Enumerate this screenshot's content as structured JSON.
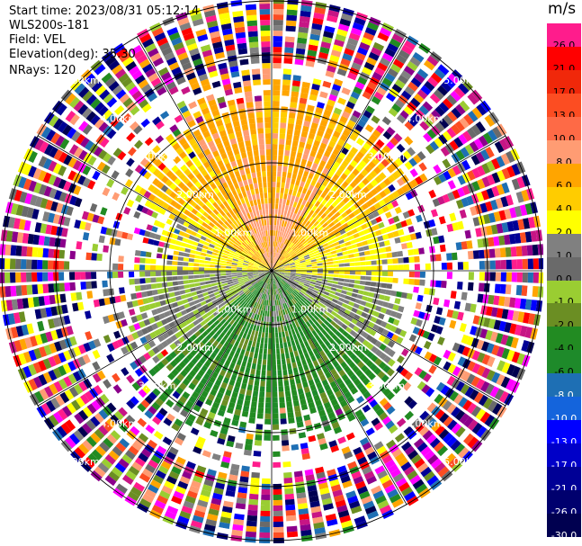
{
  "header": {
    "start_time": "Start time: 2023/08/31 05:12:14",
    "site": "WLS200s-181",
    "field": "Field: VEL",
    "elevation": "Elevation(deg): 35.30",
    "nrays": "NRays: 120"
  },
  "colorbar": {
    "unit": "m/s",
    "levels": [
      {
        "label": "26.0",
        "color": "#ff1c8c"
      },
      {
        "label": "21.0",
        "color": "#ff0000"
      },
      {
        "label": "17.0",
        "color": "#f0280a"
      },
      {
        "label": "13.0",
        "color": "#fc4d22"
      },
      {
        "label": "10.0",
        "color": "#fe6a46"
      },
      {
        "label": "8.0",
        "color": "#ff9c73"
      },
      {
        "label": "6.0",
        "color": "#ffa500"
      },
      {
        "label": "4.0",
        "color": "#ffcc00"
      },
      {
        "label": "2.0",
        "color": "#ffff00"
      },
      {
        "label": "1.0",
        "color": "#808080"
      },
      {
        "label": "0.0",
        "color": "#6a6a6a"
      },
      {
        "label": "-1.0",
        "color": "#9acd32"
      },
      {
        "label": "-2.0",
        "color": "#6b8e23"
      },
      {
        "label": "-4.0",
        "color": "#228b22"
      },
      {
        "label": "-6.0",
        "color": "#1e8a2a"
      },
      {
        "label": "-8.0",
        "color": "#1e6fb4"
      },
      {
        "label": "-10.0",
        "color": "#1464dc"
      },
      {
        "label": "-13.0",
        "color": "#0000ff"
      },
      {
        "label": "-17.0",
        "color": "#0000c8"
      },
      {
        "label": "-21.0",
        "color": "#000096"
      },
      {
        "label": "-26.0",
        "color": "#00006e"
      },
      {
        "label": "-30.0",
        "color": "#000050"
      }
    ]
  },
  "chart_data": {
    "type": "heatmap",
    "projection": "polar",
    "field": "VEL",
    "nrays": 120,
    "range_rings_km": [
      1.0,
      2.0,
      3.0,
      4.0,
      5.0
    ],
    "range_labels": [
      "1.00km",
      "2.00km",
      "3.00km",
      "4.00km",
      "5.00km"
    ],
    "spokes_deg": [
      0,
      30,
      60,
      90,
      120,
      150,
      180,
      210,
      240,
      270,
      300,
      330
    ],
    "max_range_km": 5.0,
    "noise_start_km": 3.8,
    "velocity_sectors": [
      {
        "from_deg": 270,
        "to_deg": 300,
        "min_km": 0.0,
        "max_km": 1.9,
        "class": "yellow_gray"
      },
      {
        "from_deg": 300,
        "to_deg": 330,
        "min_km": 0.0,
        "max_km": 2.6,
        "class": "yellow_orange"
      },
      {
        "from_deg": 330,
        "to_deg": 390,
        "min_km": 0.0,
        "max_km": 3.1,
        "class": "orange"
      },
      {
        "from_deg": 30,
        "to_deg": 60,
        "min_km": 0.0,
        "max_km": 2.7,
        "class": "yellow_orange"
      },
      {
        "from_deg": 60,
        "to_deg": 95,
        "min_km": 0.0,
        "max_km": 2.2,
        "class": "yellow"
      },
      {
        "from_deg": 95,
        "to_deg": 130,
        "min_km": 0.0,
        "max_km": 2.2,
        "class": "gray_green"
      },
      {
        "from_deg": 130,
        "to_deg": 230,
        "min_km": 0.0,
        "max_km": 2.7,
        "class": "green"
      },
      {
        "from_deg": 230,
        "to_deg": 270,
        "min_km": 0.0,
        "max_km": 2.3,
        "class": "gray_green"
      }
    ]
  }
}
